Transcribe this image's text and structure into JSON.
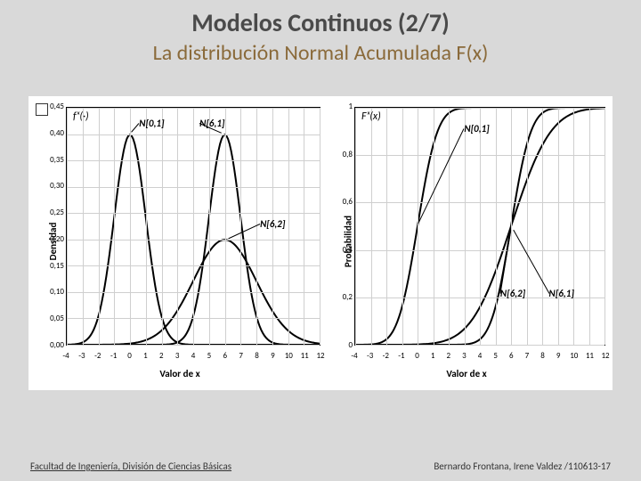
{
  "background_color": "#d9d9d9",
  "title": "Modelos Continuos (2/7)",
  "title_color": "#4a4a4a",
  "title_fontsize": 28,
  "subtitle": "La distribución Normal Acumulada F(x)",
  "subtitle_color": "#8a6a3a",
  "subtitle_fontsize": 24,
  "footer_left": "Facultad de Ingeniería, División de Ciencias Básicas",
  "footer_right": "Bernardo  Frontana, Irene Valdez  /110613-17",
  "pdf_chart": {
    "type": "line",
    "fn_label": "fₓ(·)",
    "ylabel": "Densidad",
    "xlabel": "Valor de x",
    "xlim": [
      -4,
      12
    ],
    "xtick_step": 1,
    "ylim": [
      0,
      0.45
    ],
    "ytick_step": 0.05,
    "yticks": [
      "0,00",
      "0,05",
      "0,10",
      "0,15",
      "0,20",
      "0,25",
      "0,30",
      "0,35",
      "0,40",
      "0,45"
    ],
    "grid_color": "#cfcfcf",
    "curve_color": "#000000",
    "curve_stroke": 2,
    "background": "#ffffff",
    "series": [
      {
        "label": "N[0,1]",
        "mu": 0,
        "sigma": 1,
        "label_xy": [
          0.6,
          0.42
        ]
      },
      {
        "label": "N[6,1]",
        "mu": 6,
        "sigma": 1,
        "label_xy": [
          4.4,
          0.42
        ]
      },
      {
        "label": "N[6,2]",
        "mu": 6,
        "sigma": 2,
        "label_xy": [
          8.2,
          0.23
        ]
      }
    ]
  },
  "cdf_chart": {
    "type": "line",
    "fn_label": "Fₓ(x)",
    "ylabel": "Probabilidad",
    "xlabel": "Valor de x",
    "xlim": [
      -4,
      12
    ],
    "xtick_step": 1,
    "ylim": [
      0,
      1
    ],
    "ytick_step": 0.2,
    "yticks": [
      "0",
      "0,2",
      "0,4",
      "0,6",
      "0,8",
      "1"
    ],
    "grid_color": "#cfcfcf",
    "curve_color": "#000000",
    "curve_stroke": 2,
    "background": "#ffffff",
    "series": [
      {
        "label": "N[0,1]",
        "mu": 0,
        "sigma": 1,
        "label_xy": [
          3.0,
          0.91
        ]
      },
      {
        "label": "N[6,1]",
        "mu": 6,
        "sigma": 1,
        "label_xy": [
          8.4,
          0.22
        ]
      },
      {
        "label": "N[6,2]",
        "mu": 6,
        "sigma": 2,
        "label_xy": [
          5.3,
          0.22
        ]
      }
    ]
  }
}
